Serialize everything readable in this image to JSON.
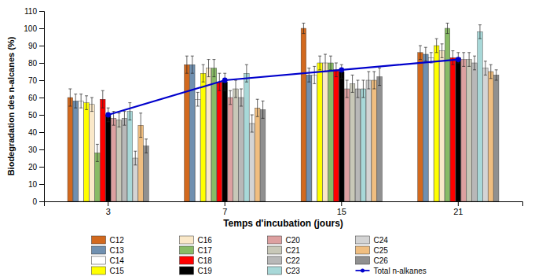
{
  "chart_data": {
    "type": "bar",
    "categories": [
      "3",
      "7",
      "15",
      "21"
    ],
    "xlabel": "Temps d'incubation (jours)",
    "ylabel": "Biodegradation des n-alcanes (%)",
    "ylim": [
      0,
      110
    ],
    "yticks": [
      0,
      10,
      20,
      30,
      40,
      50,
      60,
      70,
      80,
      90,
      100,
      110
    ],
    "grid": false,
    "legend": "bottom",
    "series": [
      {
        "name": "C12",
        "color": "#D2691E",
        "values": [
          60,
          79,
          100,
          86
        ],
        "errors": [
          5,
          5,
          3,
          4
        ]
      },
      {
        "name": "C13",
        "color": "#7090B0",
        "values": [
          58,
          79,
          73,
          85
        ],
        "errors": [
          4,
          5,
          4,
          4
        ]
      },
      {
        "name": "C14",
        "color": "#FFFFFF",
        "values": [
          58,
          59,
          73,
          83
        ],
        "errors": [
          4,
          4,
          5,
          3
        ]
      },
      {
        "name": "C15",
        "color": "#FFFF00",
        "values": [
          57,
          74,
          80,
          90
        ],
        "errors": [
          4,
          5,
          4,
          4
        ]
      },
      {
        "name": "C16",
        "color": "#FAE8C8",
        "values": [
          56,
          77,
          80,
          87
        ],
        "errors": [
          4,
          5,
          5,
          4
        ]
      },
      {
        "name": "C17",
        "color": "#88BB66",
        "values": [
          28,
          77,
          80,
          100
        ],
        "errors": [
          5,
          5,
          4,
          3
        ]
      },
      {
        "name": "C18",
        "color": "#FF0000",
        "values": [
          59,
          69,
          76,
          83
        ],
        "errors": [
          5,
          5,
          4,
          4
        ]
      },
      {
        "name": "C19",
        "color": "#000000",
        "values": [
          50,
          69,
          75,
          83
        ],
        "errors": [
          4,
          5,
          4,
          3
        ]
      },
      {
        "name": "C20",
        "color": "#DDA0A0",
        "values": [
          48,
          60,
          65,
          82
        ],
        "errors": [
          4,
          4,
          5,
          4
        ]
      },
      {
        "name": "C21",
        "color": "#C8C8B8",
        "values": [
          47,
          65,
          68,
          82
        ],
        "errors": [
          4,
          5,
          5,
          4
        ]
      },
      {
        "name": "C22",
        "color": "#B8B8B8",
        "values": [
          48,
          60,
          65,
          80
        ],
        "errors": [
          4,
          5,
          5,
          4
        ]
      },
      {
        "name": "C23",
        "color": "#A8D8D8",
        "values": [
          52,
          74,
          65,
          98
        ],
        "errors": [
          5,
          5,
          5,
          4
        ]
      },
      {
        "name": "C24",
        "color": "#D4D4D4",
        "values": [
          25,
          45,
          70,
          77
        ],
        "errors": [
          4,
          5,
          5,
          4
        ]
      },
      {
        "name": "C25",
        "color": "#F0BE80",
        "values": [
          44,
          54,
          70,
          75
        ],
        "errors": [
          7,
          5,
          5,
          4
        ]
      },
      {
        "name": "C26",
        "color": "#909090",
        "values": [
          32,
          53,
          72,
          73
        ],
        "errors": [
          4,
          5,
          5,
          3
        ]
      },
      {
        "name": "Total n-alkanes",
        "type": "line",
        "color": "#0000CC",
        "marker": "circle",
        "values": [
          50,
          70,
          76,
          82
        ]
      }
    ]
  }
}
